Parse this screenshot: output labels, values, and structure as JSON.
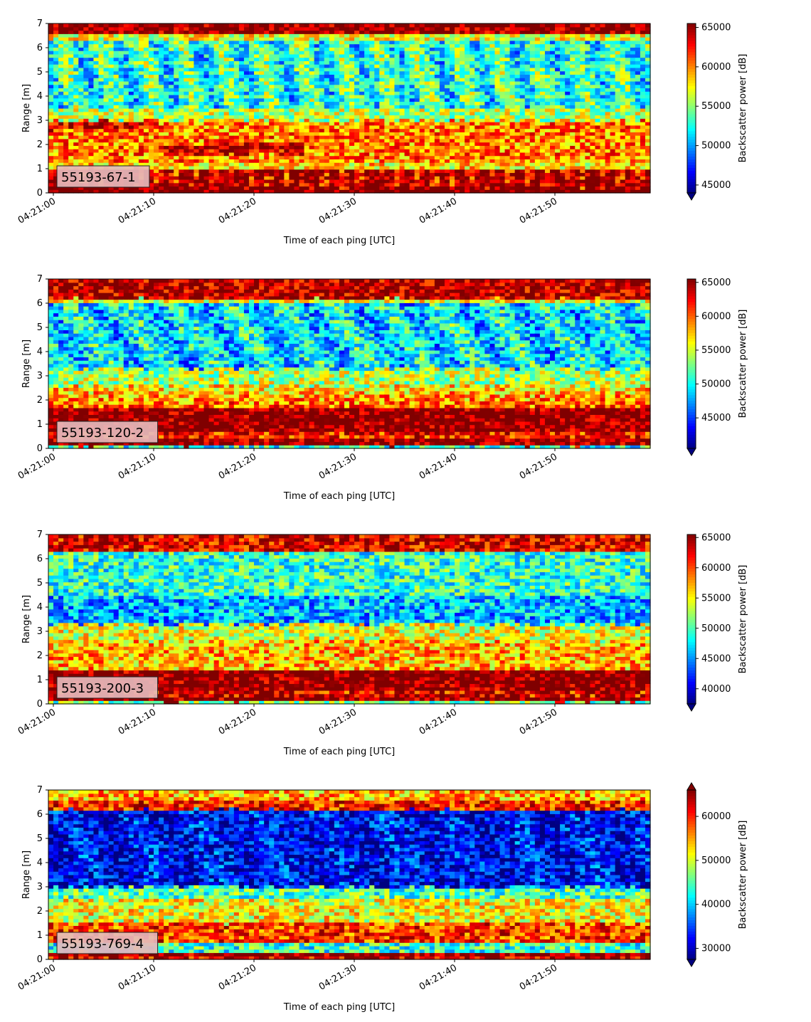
{
  "colormap": "jet",
  "chart_data": [
    {
      "type": "heatmap",
      "label": "55193-67-1",
      "xlabel": "Time of each ping [UTC]",
      "ylabel": "Range [m]",
      "xticks": [
        "04:21:00",
        "04:21:10",
        "04:21:20",
        "04:21:30",
        "04:21:40",
        "04:21:50"
      ],
      "yticks": [
        "0",
        "1",
        "2",
        "3",
        "4",
        "5",
        "6",
        "7"
      ],
      "ylim": [
        0,
        7
      ],
      "x_time_range": [
        "04:21:00",
        "04:21:59"
      ],
      "colorbar_label": "Backscatter power [dB]",
      "colorbar_ticks": [
        "45000",
        "50000",
        "55000",
        "60000",
        "65000"
      ],
      "colorbar_range": [
        44000,
        65500
      ],
      "colorbar_extend": "min",
      "pattern": "saturated red bands 0.2–1.0 m and 6.6–7.0 m; orange/red echo layers near 1.5–3.0 m (stepped layer around 2 m, 04:21:15–04:21:25); mixed blue/green/yellow 3–6.3 m"
    },
    {
      "type": "heatmap",
      "label": "55193-120-2",
      "xlabel": "Time of each ping [UTC]",
      "ylabel": "Range [m]",
      "xticks": [
        "04:21:00",
        "04:21:10",
        "04:21:20",
        "04:21:30",
        "04:21:40",
        "04:21:50"
      ],
      "yticks": [
        "0",
        "1",
        "2",
        "3",
        "4",
        "5",
        "6",
        "7"
      ],
      "ylim": [
        0,
        7
      ],
      "x_time_range": [
        "04:21:00",
        "04:21:59"
      ],
      "colorbar_label": "Backscatter power [dB]",
      "colorbar_ticks": [
        "45000",
        "50000",
        "55000",
        "60000",
        "65000"
      ],
      "colorbar_range": [
        40500,
        65500
      ],
      "colorbar_extend": "min",
      "pattern": "saturated red band 0.1–1.8 m; red band 6.2–7.0 m; orange/yellow 1.8–2.6 m; blue/cyan 3–6 m"
    },
    {
      "type": "heatmap",
      "label": "55193-200-3",
      "xlabel": "Time of each ping [UTC]",
      "ylabel": "Range [m]",
      "xticks": [
        "04:21:00",
        "04:21:10",
        "04:21:20",
        "04:21:30",
        "04:21:40",
        "04:21:50"
      ],
      "yticks": [
        "0",
        "1",
        "2",
        "3",
        "4",
        "5",
        "6",
        "7"
      ],
      "ylim": [
        0,
        7
      ],
      "x_time_range": [
        "04:21:00",
        "04:21:59"
      ],
      "colorbar_label": "Backscatter power [dB]",
      "colorbar_ticks": [
        "40000",
        "45000",
        "50000",
        "55000",
        "60000",
        "65000"
      ],
      "colorbar_range": [
        37500,
        65500
      ],
      "colorbar_extend": "min",
      "pattern": "saturated red band 0.1–1.4 m; red/orange band 6.3–7.0 m; yellow/green 1.4–3 m; blue 3.5–4.5 m"
    },
    {
      "type": "heatmap",
      "label": "55193-769-4",
      "xlabel": "Time of each ping [UTC]",
      "ylabel": "Range [m]",
      "xticks": [
        "04:21:00",
        "04:21:10",
        "04:21:20",
        "04:21:30",
        "04:21:40",
        "04:21:50"
      ],
      "yticks": [
        "0",
        "1",
        "2",
        "3",
        "4",
        "5",
        "6",
        "7"
      ],
      "ylim": [
        0,
        7
      ],
      "x_time_range": [
        "04:21:00",
        "04:21:59"
      ],
      "colorbar_label": "Backscatter power [dB]",
      "colorbar_ticks": [
        "30000",
        "40000",
        "50000",
        "60000"
      ],
      "colorbar_range": [
        27500,
        66000
      ],
      "colorbar_extend": "both",
      "pattern": "thin red line 0.1–0.3 m; cyan 0.3–0.7 m; orange/red 0.7–1.5 m; yellow/green 1.5–2.5 m; deep blue 3–6.2 m; red/yellow band 6.2–7.0 m"
    }
  ]
}
